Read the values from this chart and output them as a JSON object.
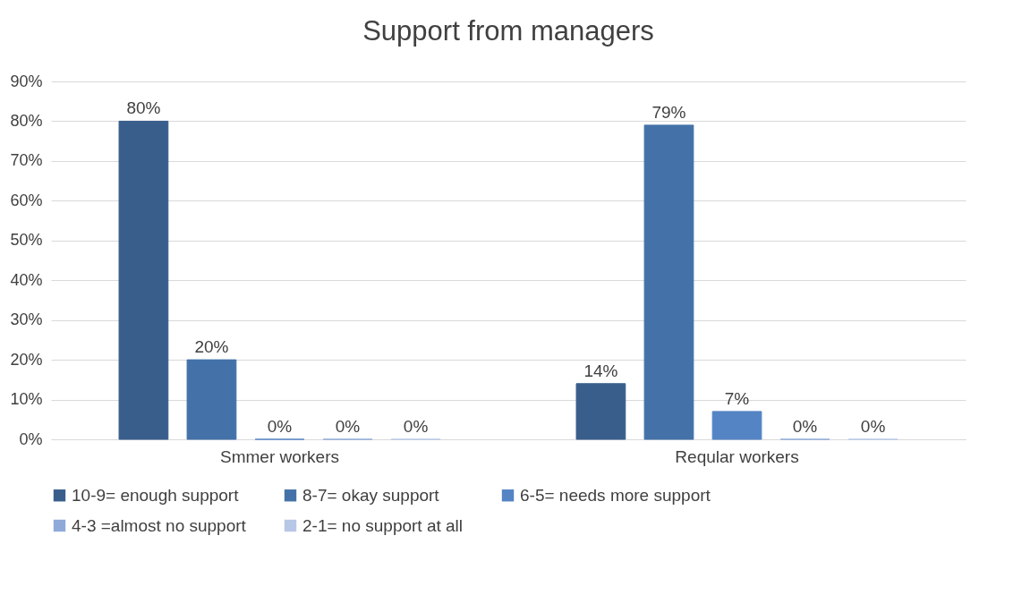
{
  "chart_data": {
    "type": "bar",
    "title": "Support from managers",
    "categories": [
      "Smmer workers",
      "Reqular workers"
    ],
    "series": [
      {
        "name": "10-9= enough support",
        "color": "#3a5e8c",
        "values": [
          80,
          14
        ],
        "value_labels": [
          "80%",
          "14%"
        ]
      },
      {
        "name": "8-7= okay support",
        "color": "#4472a8",
        "values": [
          20,
          79
        ],
        "value_labels": [
          "20%",
          "79%"
        ]
      },
      {
        "name": "6-5= needs more support",
        "color": "#5484c4",
        "values": [
          0,
          7
        ],
        "value_labels": [
          "0%",
          "7%"
        ]
      },
      {
        "name": "4-3 =almost no support",
        "color": "#8faad8",
        "values": [
          0,
          0
        ],
        "value_labels": [
          "0%",
          "0%"
        ]
      },
      {
        "name": "2-1= no support at all",
        "color": "#b7c7e6",
        "values": [
          0,
          0
        ],
        "value_labels": [
          "0%",
          "0%"
        ]
      }
    ],
    "ylim": [
      0,
      90
    ],
    "yticks": [
      {
        "value": 0,
        "label": "0%"
      },
      {
        "value": 10,
        "label": "10%"
      },
      {
        "value": 20,
        "label": "20%"
      },
      {
        "value": 30,
        "label": "30%"
      },
      {
        "value": 40,
        "label": "40%"
      },
      {
        "value": 50,
        "label": "50%"
      },
      {
        "value": 60,
        "label": "60%"
      },
      {
        "value": 70,
        "label": "70%"
      },
      {
        "value": 80,
        "label": "80%"
      },
      {
        "value": 90,
        "label": "90%"
      }
    ],
    "grid": "y",
    "legend": "bottom"
  }
}
